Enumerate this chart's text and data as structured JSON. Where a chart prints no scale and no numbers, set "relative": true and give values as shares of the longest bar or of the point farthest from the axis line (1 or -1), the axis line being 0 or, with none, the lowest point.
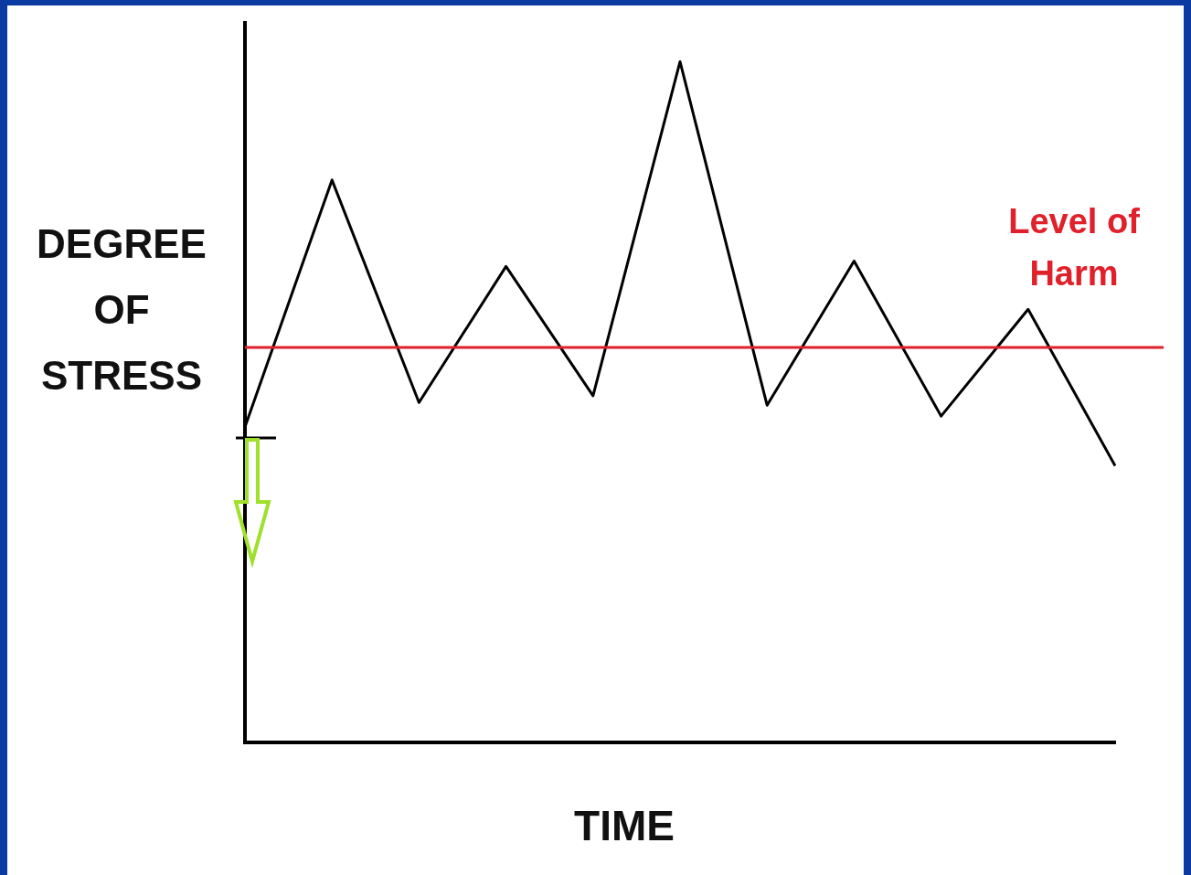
{
  "chart_data": {
    "type": "line",
    "xlabel": "TIME",
    "ylabel": "DEGREE OF STRESS",
    "relative": true,
    "categories": [
      null,
      null,
      null,
      null,
      null,
      null,
      null,
      null,
      null,
      null,
      null
    ],
    "series": [
      {
        "color": "#000000",
        "values": [
          0.463,
          0.826,
          0.499,
          0.699,
          0.509,
          1,
          0.495,
          0.707,
          0.479,
          0.636,
          0.406
        ]
      }
    ],
    "ref_lines": [
      {
        "axis": "y",
        "value": 0.58,
        "label": "Level of Harm",
        "color": "#e0202a"
      }
    ],
    "grid": false,
    "legend": false,
    "marker": "none",
    "line_style": "solid"
  }
}
